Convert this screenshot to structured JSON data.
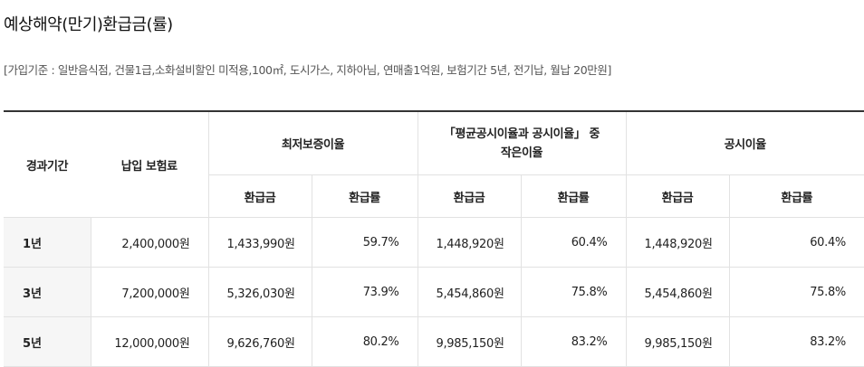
{
  "title": "예상해약(만기)환급금(률)",
  "basis": "[가입기준 : 일반음식점, 건물1급,소화설비할인 미적용,100㎡, 도시가스, 지하아님, 연매출1억원, 보험기간 5년, 전기납, 월납 20만원]",
  "table": {
    "headers": {
      "period": "경과기간",
      "premium": "납입 보험료",
      "group1": "최저보증이율",
      "group2_line1": "「평균공시이율과 공시이율」 중",
      "group2_line2": "작은이율",
      "group3": "공시이율",
      "refund": "환급금",
      "rate": "환급률"
    },
    "rows": [
      {
        "period": "1년",
        "premium": "2,400,000원",
        "g1_refund": "1,433,990원",
        "g1_rate": "59.7%",
        "g2_refund": "1,448,920원",
        "g2_rate": "60.4%",
        "g3_refund": "1,448,920원",
        "g3_rate": "60.4%"
      },
      {
        "period": "3년",
        "premium": "7,200,000원",
        "g1_refund": "5,326,030원",
        "g1_rate": "73.9%",
        "g2_refund": "5,454,860원",
        "g2_rate": "75.8%",
        "g3_refund": "5,454,860원",
        "g3_rate": "75.8%"
      },
      {
        "period": "5년",
        "premium": "12,000,000원",
        "g1_refund": "9,626,760원",
        "g1_rate": "80.2%",
        "g2_refund": "9,985,150원",
        "g2_rate": "83.2%",
        "g3_refund": "9,985,150원",
        "g3_rate": "83.2%"
      }
    ]
  }
}
